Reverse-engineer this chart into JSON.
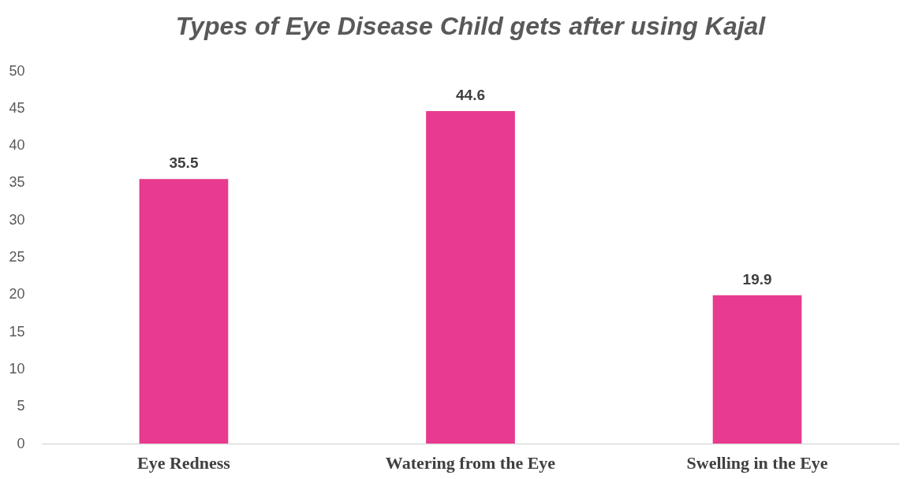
{
  "chart_data": {
    "type": "bar",
    "title": "Types of Eye Disease Child gets after using Kajal",
    "categories": [
      "Eye Redness",
      "Watering from the Eye",
      "Swelling in the Eye"
    ],
    "values": [
      35.5,
      44.6,
      19.9
    ],
    "color": "#e83a8e",
    "ylim": [
      0,
      50
    ],
    "yticks": [
      0,
      5,
      10,
      15,
      20,
      25,
      30,
      35,
      40,
      45,
      50
    ],
    "grid": false,
    "data_labels": true
  }
}
